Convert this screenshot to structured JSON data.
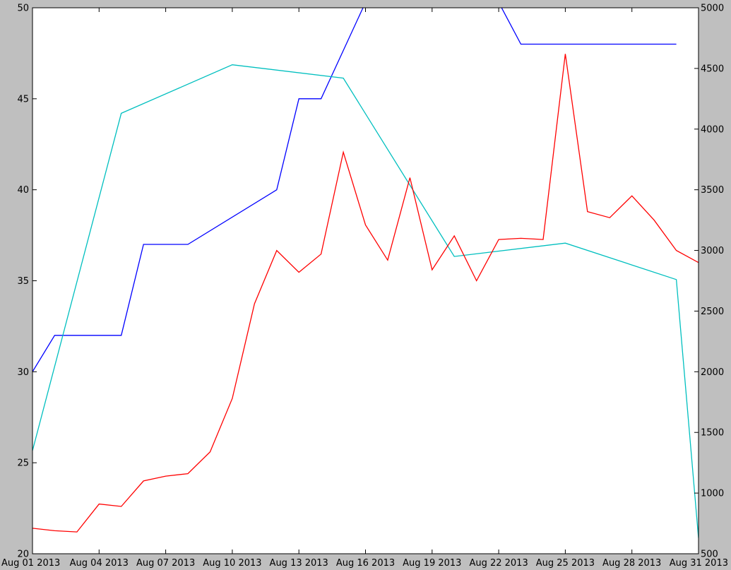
{
  "chart_data": {
    "type": "line",
    "title": "",
    "xlabel": "",
    "ylabel": "",
    "x_ticks": [
      "Aug 01 2013",
      "Aug 04 2013",
      "Aug 07 2013",
      "Aug 10 2013",
      "Aug 13 2013",
      "Aug 16 2013",
      "Aug 19 2013",
      "Aug 22 2013",
      "Aug 25 2013",
      "Aug 28 2013",
      "Aug 31 2013"
    ],
    "xlim": [
      "2013-08-01",
      "2013-08-31"
    ],
    "y_left": {
      "ylim": [
        20,
        50
      ],
      "ticks": [
        "20",
        "25",
        "30",
        "35",
        "40",
        "45",
        "50"
      ]
    },
    "y_right": {
      "ylim": [
        500,
        5000
      ],
      "ticks": [
        "500",
        "1000",
        "1500",
        "2000",
        "2500",
        "3000",
        "3500",
        "4000",
        "4500",
        "5000"
      ]
    },
    "grid": false,
    "legend": "none",
    "series": [
      {
        "axis": "left",
        "color": "#0000ff",
        "points": [
          [
            "2013-08-01",
            30
          ],
          [
            "2013-08-02",
            32
          ],
          [
            "2013-08-05",
            32
          ],
          [
            "2013-08-06",
            37
          ],
          [
            "2013-08-08",
            37
          ],
          [
            "2013-08-12",
            40
          ],
          [
            "2013-08-13",
            45
          ],
          [
            "2013-08-14",
            45
          ],
          [
            "2013-08-16",
            50.3
          ],
          [
            "2013-08-22",
            50.3
          ],
          [
            "2013-08-23",
            48
          ],
          [
            "2013-08-30",
            48
          ]
        ]
      },
      {
        "axis": "right",
        "color": "#00bfbf",
        "points": [
          [
            "2013-08-01",
            1350
          ],
          [
            "2013-08-05",
            4130
          ],
          [
            "2013-08-10",
            4530
          ],
          [
            "2013-08-15",
            4420
          ],
          [
            "2013-08-20",
            2950
          ],
          [
            "2013-08-25",
            3060
          ],
          [
            "2013-08-30",
            2760
          ],
          [
            "2013-08-31",
            630
          ]
        ]
      },
      {
        "axis": "right",
        "color": "#ff0000",
        "points": [
          [
            "2013-08-01",
            710
          ],
          [
            "2013-08-02",
            690
          ],
          [
            "2013-08-03",
            680
          ],
          [
            "2013-08-04",
            910
          ],
          [
            "2013-08-05",
            890
          ],
          [
            "2013-08-06",
            1100
          ],
          [
            "2013-08-07",
            1140
          ],
          [
            "2013-08-08",
            1160
          ],
          [
            "2013-08-09",
            1340
          ],
          [
            "2013-08-10",
            1780
          ],
          [
            "2013-08-11",
            2560
          ],
          [
            "2013-08-12",
            3000
          ],
          [
            "2013-08-13",
            2820
          ],
          [
            "2013-08-14",
            2970
          ],
          [
            "2013-08-15",
            3810
          ],
          [
            "2013-08-16",
            3210
          ],
          [
            "2013-08-17",
            2920
          ],
          [
            "2013-08-18",
            3600
          ],
          [
            "2013-08-19",
            2840
          ],
          [
            "2013-08-20",
            3120
          ],
          [
            "2013-08-21",
            2750
          ],
          [
            "2013-08-22",
            3090
          ],
          [
            "2013-08-23",
            3100
          ],
          [
            "2013-08-24",
            3090
          ],
          [
            "2013-08-25",
            4620
          ],
          [
            "2013-08-26",
            3320
          ],
          [
            "2013-08-27",
            3270
          ],
          [
            "2013-08-28",
            3450
          ],
          [
            "2013-08-29",
            3250
          ],
          [
            "2013-08-30",
            3000
          ],
          [
            "2013-08-31",
            2900
          ]
        ]
      }
    ]
  }
}
